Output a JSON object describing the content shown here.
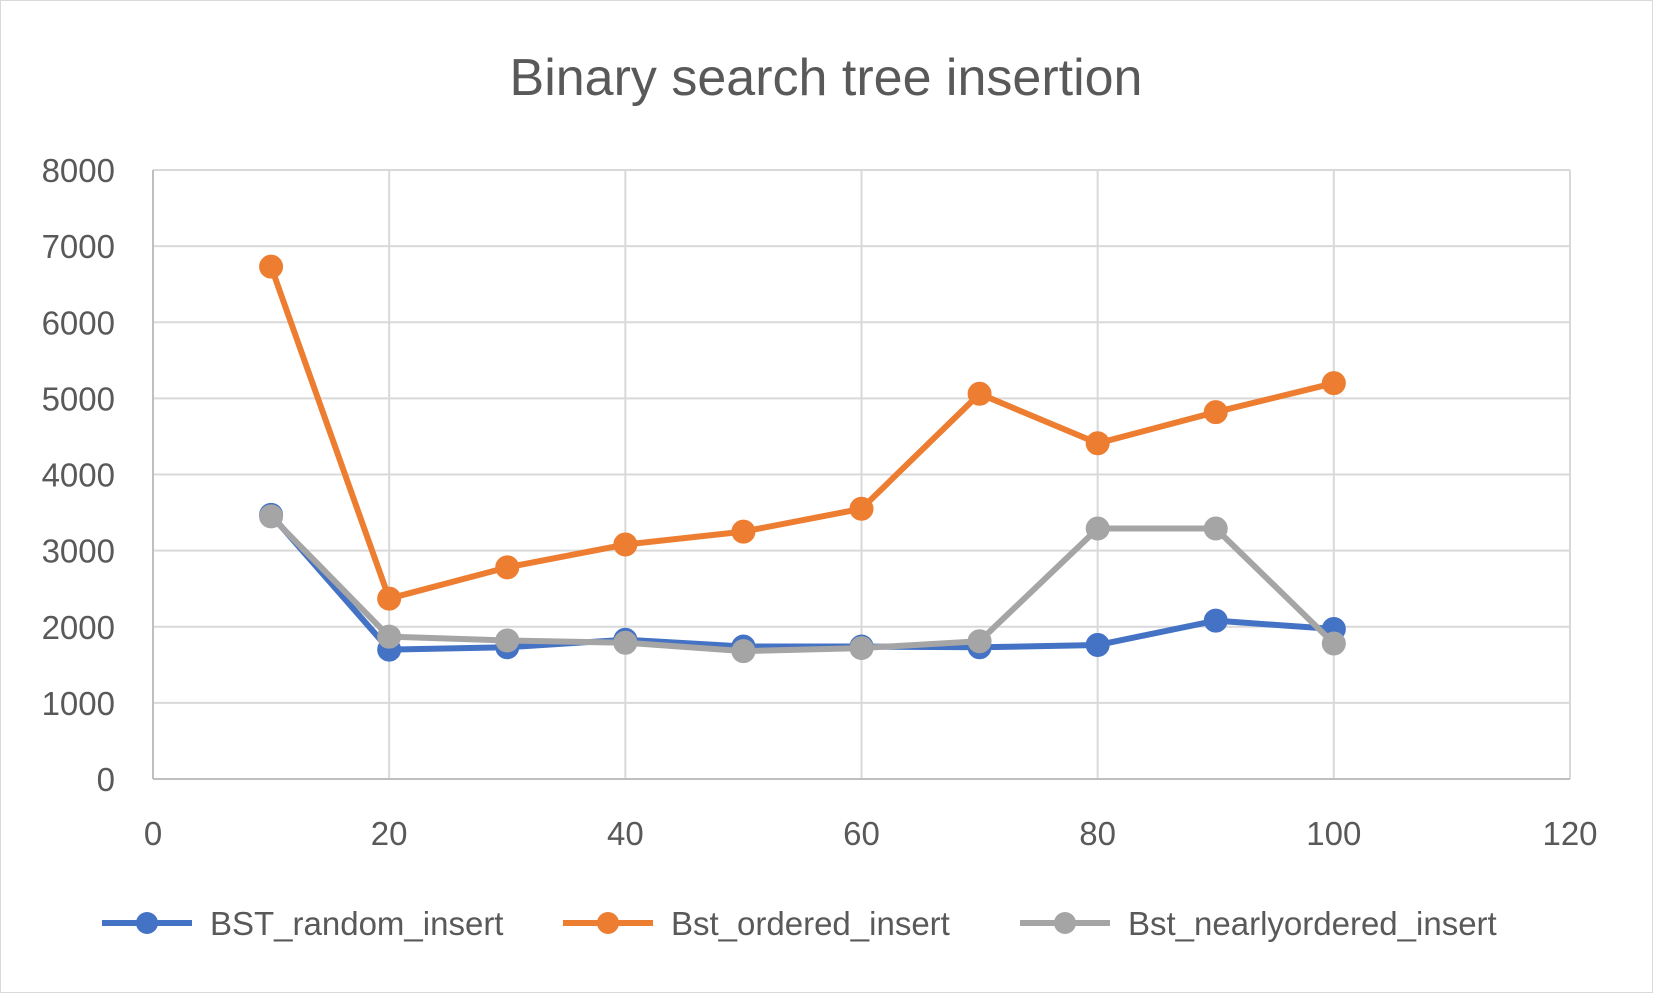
{
  "chart_data": {
    "type": "scatter",
    "title": "Binary search tree insertion",
    "xlabel": "",
    "ylabel": "",
    "xlim": [
      0,
      120
    ],
    "ylim": [
      0,
      8000
    ],
    "x_ticks": [
      "0",
      "20",
      "40",
      "60",
      "80",
      "100",
      "120"
    ],
    "y_ticks": [
      "0",
      "1000",
      "2000",
      "3000",
      "4000",
      "5000",
      "6000",
      "7000",
      "8000"
    ],
    "grid": true,
    "legend_position": "bottom",
    "x": [
      10,
      20,
      30,
      40,
      50,
      60,
      70,
      80,
      90,
      100
    ],
    "series": [
      {
        "name": "BST_random_insert",
        "color": "#4472c4",
        "values": [
          3470,
          1700,
          1730,
          1830,
          1740,
          1740,
          1730,
          1760,
          2080,
          1970
        ]
      },
      {
        "name": "Bst_ordered_insert",
        "color": "#ed7d31",
        "values": [
          6730,
          2370,
          2780,
          3080,
          3250,
          3550,
          5060,
          4410,
          4820,
          5200
        ]
      },
      {
        "name": "Bst_nearlyordered_insert",
        "color": "#a5a5a5",
        "values": [
          3450,
          1870,
          1820,
          1790,
          1680,
          1720,
          1810,
          3290,
          3290,
          1780
        ]
      }
    ]
  }
}
